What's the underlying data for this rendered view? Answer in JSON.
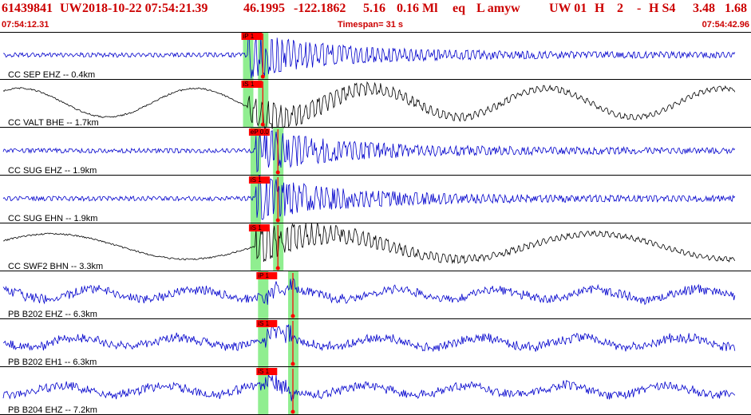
{
  "header": {
    "event_id": "61439841",
    "network": "UW",
    "datetime": "2018-10-22 07:54:21.39",
    "lat": "46.1995",
    "lon": "-122.1862",
    "depth": "5.16",
    "magnitude": "0.16 Ml",
    "event_type": "eq",
    "flags": "L amyw",
    "source": "UW 01",
    "quality": "H",
    "stations": "2",
    "dash": "-",
    "category": "H S4",
    "rms": "3.48",
    "err": "1.68",
    "start_time": "07:54:12.31",
    "timespan": "Timespan=  31 s",
    "end_time": "07:54:42.96"
  },
  "traces": [
    {
      "label": "CC SEP EHZ -- 0.4km",
      "color": "#0000cc",
      "kind": "quake",
      "pick_label": "iP 1",
      "arrivals": [
        0.33,
        0.35
      ]
    },
    {
      "label": "CC VALT BHE -- 1.7km",
      "color": "#000000",
      "kind": "long",
      "pick_label": "iS 1",
      "arrivals": [
        0.33,
        0.35
      ]
    },
    {
      "label": "CC SUG EHZ -- 1.9km",
      "color": "#0000cc",
      "kind": "quake2",
      "pick_label": "eP 0.0",
      "arrivals": [
        0.34,
        0.37
      ]
    },
    {
      "label": "CC SUG EHN -- 1.9km",
      "color": "#0000cc",
      "kind": "quake",
      "pick_label": "iS 1",
      "arrivals": [
        0.34,
        0.37
      ]
    },
    {
      "label": "CC SWF2 BHN -- 3.3km",
      "color": "#000000",
      "kind": "long2",
      "pick_label": "iS 1",
      "arrivals": [
        0.34,
        0.37
      ]
    },
    {
      "label": "PB B202 EHZ -- 6.3km",
      "color": "#0000cc",
      "kind": "noise",
      "pick_label": "iP 1",
      "arrivals": [
        0.35,
        0.39
      ]
    },
    {
      "label": "PB B202 EH1 -- 6.3km",
      "color": "#0000cc",
      "kind": "noise",
      "pick_label": "iS 1",
      "arrivals": [
        0.35,
        0.39
      ]
    },
    {
      "label": "PB B204 EHZ -- 7.2km",
      "color": "#0000cc",
      "kind": "noise",
      "pick_label": "iS 1",
      "arrivals": [
        0.35,
        0.39
      ]
    }
  ],
  "colors": {
    "header_text": "#cc0000",
    "pick": "#ff0000",
    "window": "#90ee90",
    "divider": "#000000"
  }
}
